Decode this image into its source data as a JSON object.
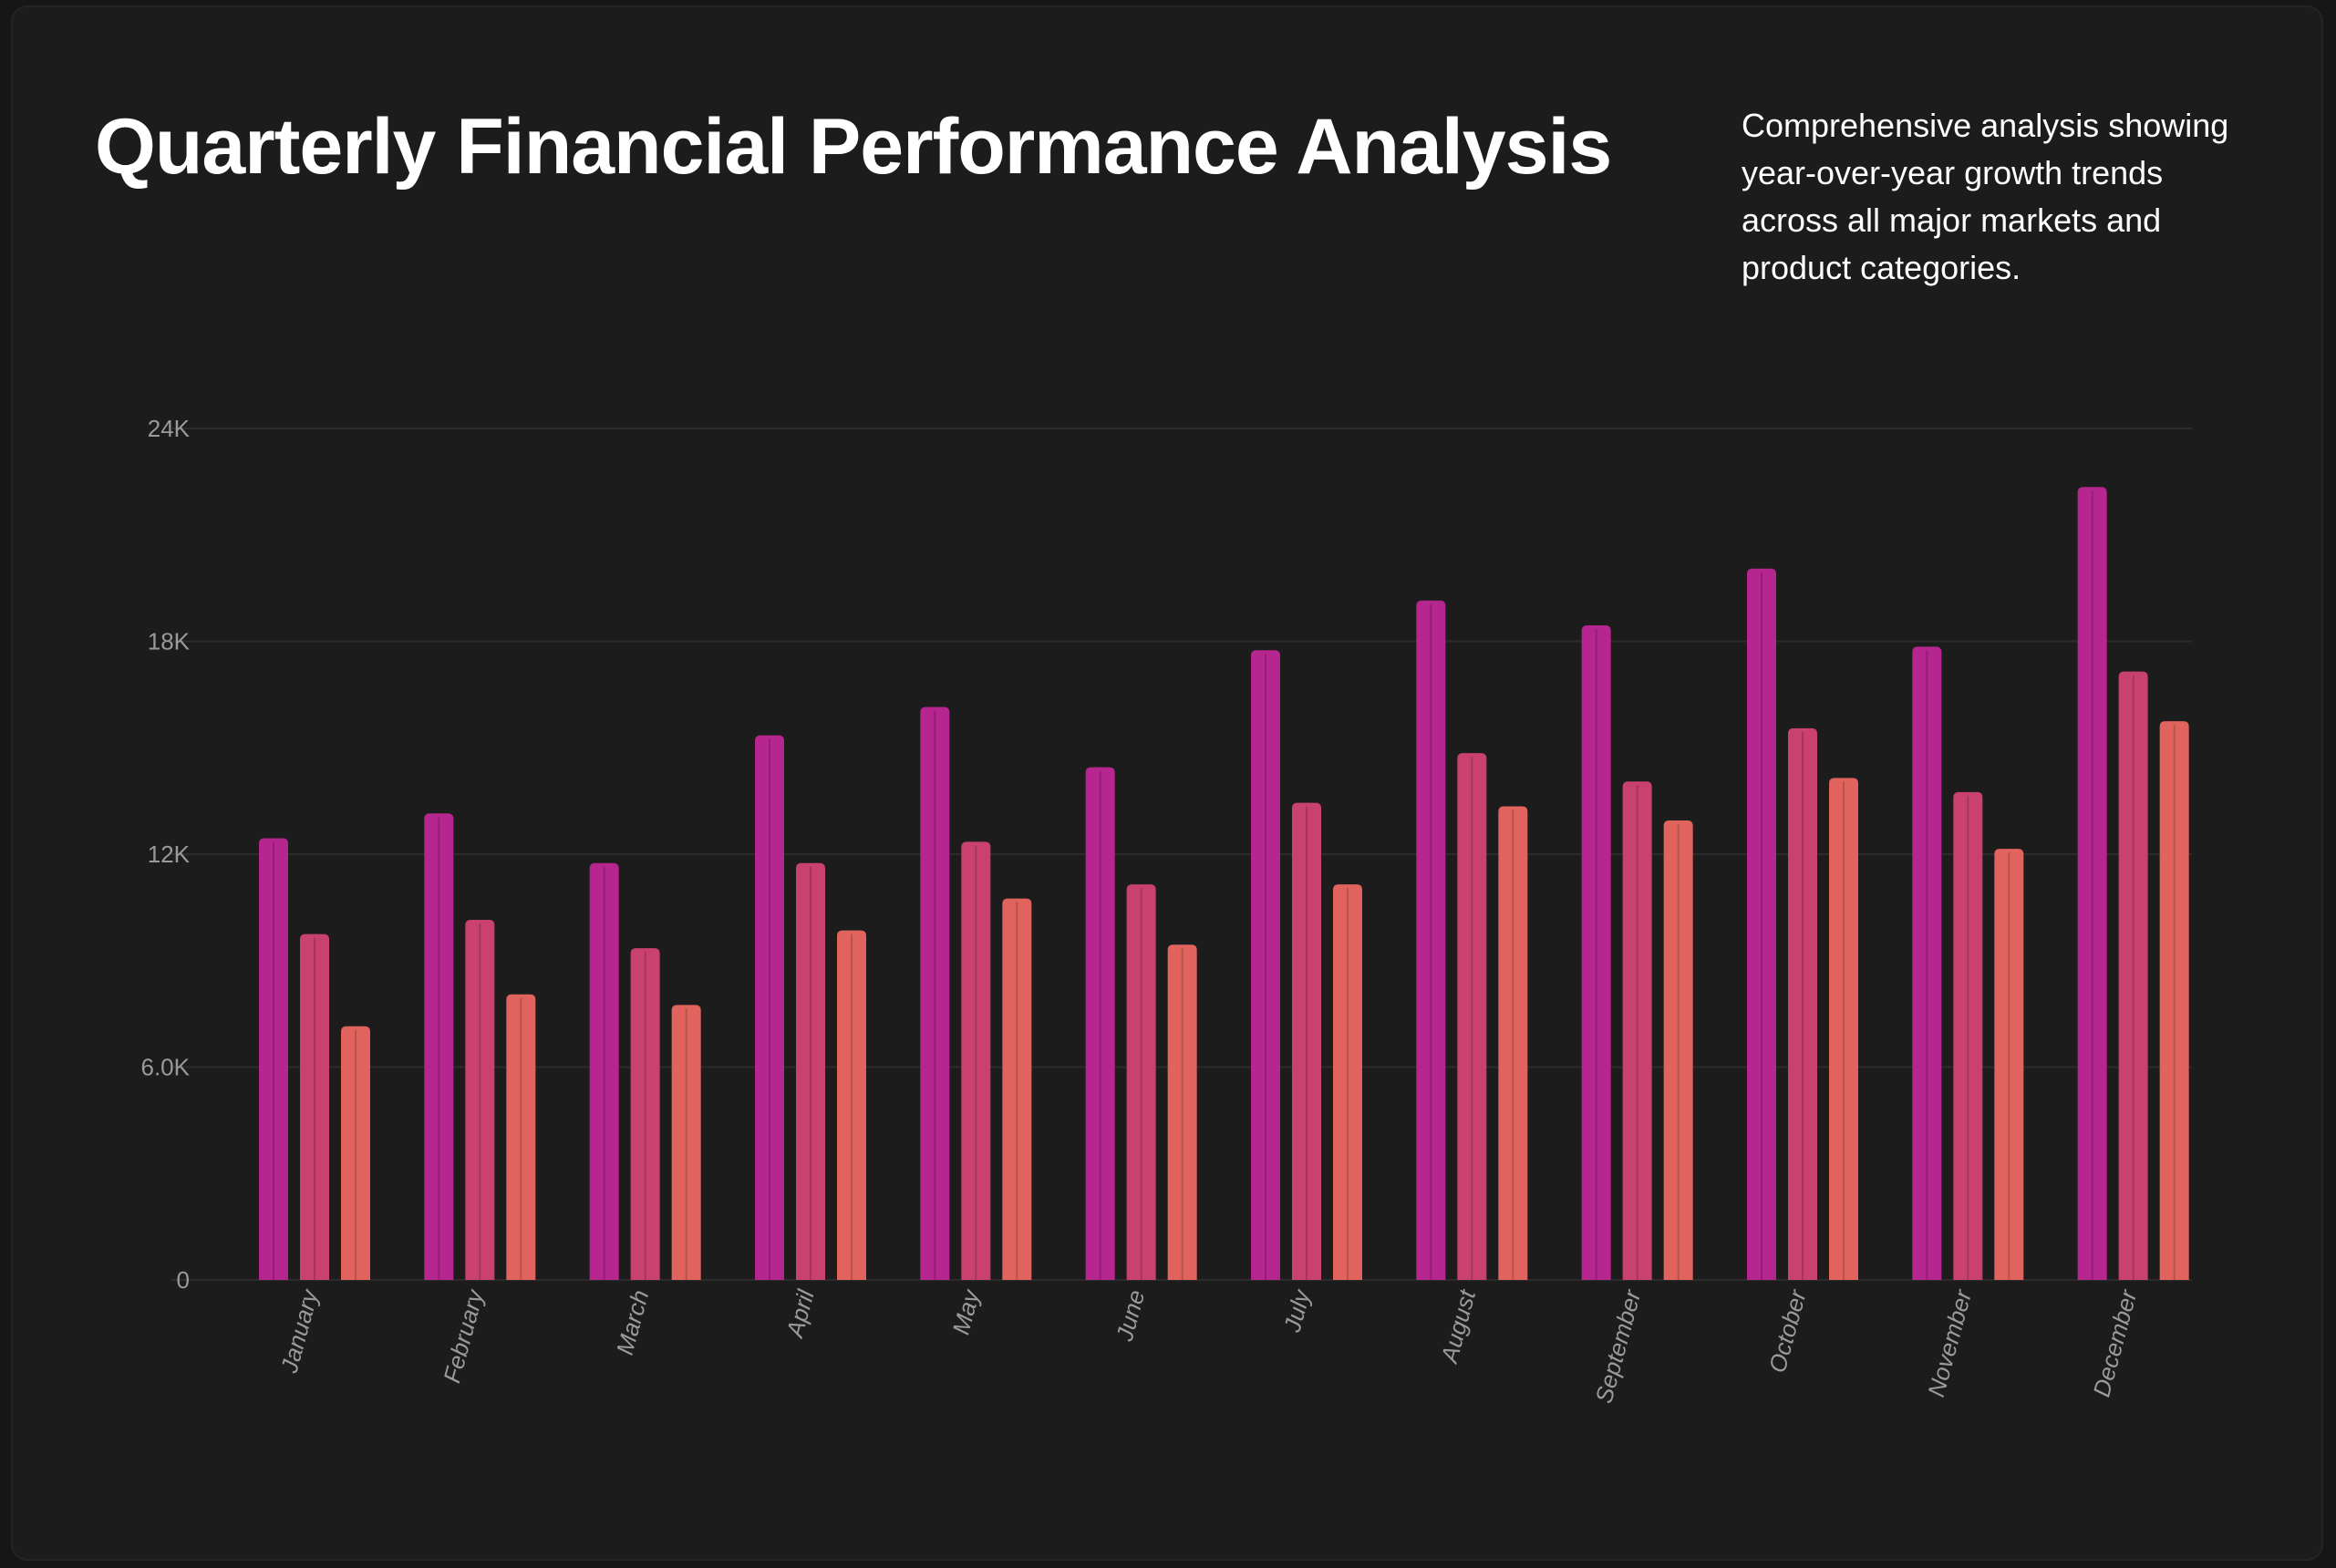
{
  "header": {
    "title": "Quarterly Financial Performance Analysis",
    "subtitle": "Comprehensive analysis showing year-over-year growth trends across all major markets and product categories."
  },
  "colors": {
    "background": "#1c1c1c",
    "grid": "#2c2c2c",
    "series": [
      "#b5268e",
      "#c9426f",
      "#e0645d"
    ]
  },
  "chart_data": {
    "type": "bar",
    "title": "Quarterly Financial Performance Analysis",
    "subtitle": "Comprehensive analysis showing year-over-year growth trends across all major markets and product categories.",
    "xlabel": "",
    "ylabel": "",
    "ylim": [
      0,
      24000
    ],
    "yticks": [
      0,
      6000,
      12000,
      18000,
      24000
    ],
    "ytick_labels": [
      "0",
      "6.0K",
      "12K",
      "18K",
      "24K"
    ],
    "grid": true,
    "legend": "none",
    "categories": [
      "January",
      "February",
      "March",
      "April",
      "May",
      "June",
      "July",
      "August",
      "September",
      "October",
      "November",
      "December"
    ],
    "series": [
      {
        "values": [
          12450,
          13150,
          11750,
          15350,
          16150,
          14450,
          17750,
          19150,
          18450,
          20050,
          17850,
          22350
        ]
      },
      {
        "values": [
          9750,
          10150,
          9350,
          11750,
          12350,
          11150,
          13450,
          14850,
          14050,
          15550,
          13750,
          17150
        ]
      },
      {
        "values": [
          7150,
          8050,
          7750,
          9850,
          10750,
          9450,
          11150,
          13350,
          12950,
          14150,
          12150,
          15750
        ]
      }
    ]
  }
}
